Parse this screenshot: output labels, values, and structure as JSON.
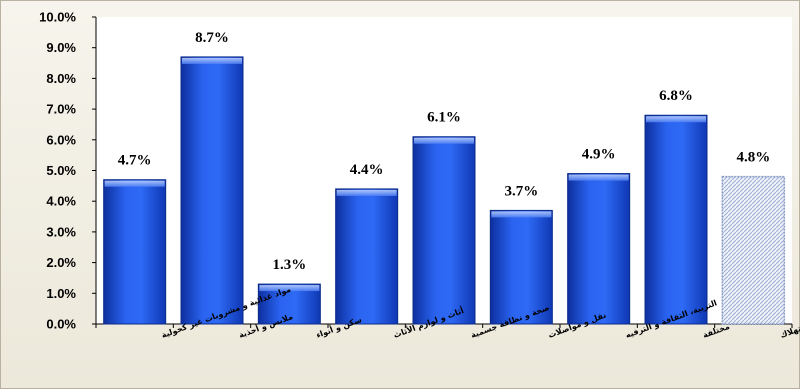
{
  "chart_data": {
    "type": "bar",
    "title": "",
    "xlabel": "",
    "ylabel": "",
    "ylim": [
      0,
      10
    ],
    "ytick_labels": [
      "0.0%",
      "1.0%",
      "2.0%",
      "3.0%",
      "4.0%",
      "5.0%",
      "6.0%",
      "7.0%",
      "8.0%",
      "9.0%",
      "10.0%"
    ],
    "categories": [
      "مواد غذائية و مشروبات غير كحولية",
      "ملابس و أحذية",
      "سكن و أنواء",
      "أثاث و لوازم الأثاث",
      "صحة و نظافة جسمية",
      "نقل و مواصلات",
      "التربية، الثقافة و الترفيه",
      "مختلفة",
      "إجمالي مؤشر الأسعار عند الإستهلاك"
    ],
    "values": [
      4.7,
      8.7,
      1.3,
      4.4,
      6.1,
      3.7,
      4.9,
      6.8,
      4.8
    ],
    "data_labels": [
      "4.7%",
      "8.7%",
      "1.3%",
      "4.4%",
      "6.1%",
      "3.7%",
      "4.9%",
      "6.8%",
      "4.8%"
    ],
    "grid": false,
    "legend": "none",
    "colors": {
      "bar": "#1a4fd8",
      "bar_highlight": "#7ea6ff",
      "total_bar": "#c7d0e4",
      "plot_background": "#ffffff",
      "chart_background": "#efece0"
    }
  }
}
